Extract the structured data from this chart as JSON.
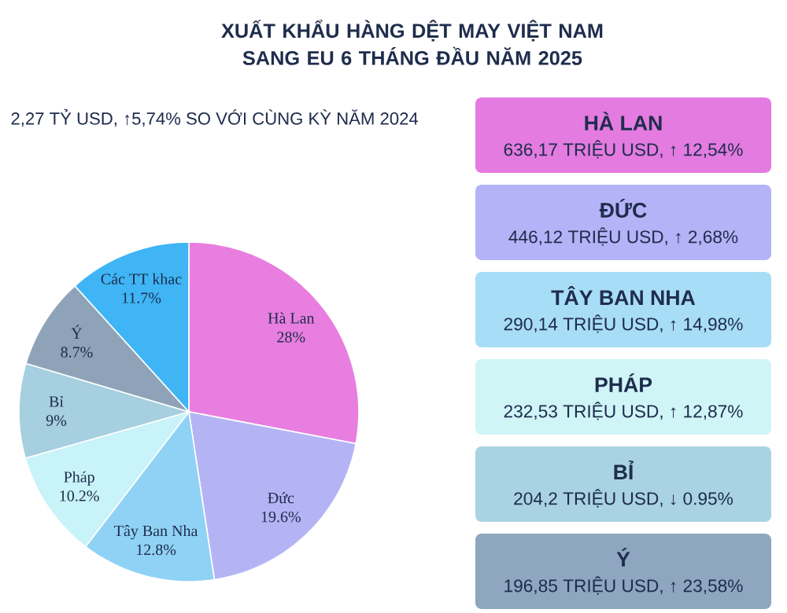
{
  "chart_data": {
    "type": "pie",
    "title": "XUẤT KHẨU HÀNG DỆT MAY VIỆT NAM SANG EU 6 THÁNG ĐẦU NĂM 2025",
    "subtitle": "2,27 TỶ USD, ↑5,74% SO VỚI CÙNG KỲ NĂM 2024",
    "categories": [
      "Hà Lan",
      "Đức",
      "Tây Ban Nha",
      "Pháp",
      "Bỉ",
      "Ý",
      "Các TT khac"
    ],
    "values": [
      28,
      19.6,
      12.8,
      10.2,
      9,
      8.7,
      11.7
    ],
    "value_labels": [
      "28%",
      "19.6%",
      "12.8%",
      "10.2%",
      "9%",
      "8.7%",
      "11.7%"
    ],
    "colors": [
      "#e87ee0",
      "#b4b4f5",
      "#90d2f5",
      "#c8f3f8",
      "#a6cfe0",
      "#8fa3b8",
      "#3fb5f5"
    ],
    "annotations": [
      "HÀ LAN",
      "636,17 TRIỆU USD, ↑ 12,54%",
      "ĐỨC",
      "446,12 TRIỆU USD, ↑ 2,68%",
      "TÂY BAN NHA",
      "290,14 TRIỆU USD, ↑ 14,98%",
      "PHÁP",
      "232,53 TRIỆU USD, ↑ 12,87%",
      "BỈ",
      "204,2 TRIỆU USD, ↓ 0.95%",
      "Ý",
      "196,85 TRIỆU USD, ↑ 23,58%"
    ]
  }
}
